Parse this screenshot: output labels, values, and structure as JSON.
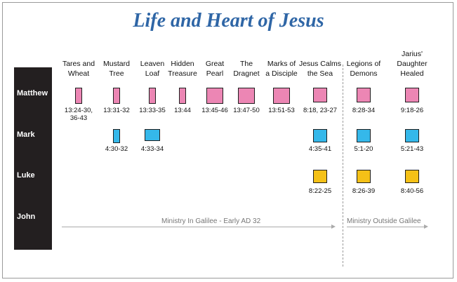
{
  "title": "Life and Heart of Jesus",
  "gospels": [
    "Matthew",
    "Mark",
    "Luke",
    "John"
  ],
  "colors": {
    "matthew": "#ec86b4",
    "mark": "#35b8ea",
    "luke": "#f5c117",
    "title": "#2f66a6"
  },
  "events": [
    {
      "label1": "Tares and",
      "label2": "Wheat",
      "matthew": "13:24-30,\n36-43"
    },
    {
      "label1": "Mustard",
      "label2": "Tree",
      "matthew": "13:31-32",
      "mark": "4:30-32"
    },
    {
      "label1": "Leaven",
      "label2": "Loaf",
      "matthew": "13:33-35",
      "mark": "4:33-34"
    },
    {
      "label1": "Hidden",
      "label2": "Treasure",
      "matthew": "13:44"
    },
    {
      "label1": "Great",
      "label2": "Pearl",
      "matthew": "13:45-46"
    },
    {
      "label1": "The",
      "label2": "Dragnet",
      "matthew": "13:47-50"
    },
    {
      "label1": "Marks of",
      "label2": "a Disciple",
      "matthew": "13:51-53"
    },
    {
      "label1": "Jesus Calms",
      "label2": "the Sea",
      "matthew": "8:18, 23-27",
      "mark": "4:35-41",
      "luke": "8:22-25"
    },
    {
      "label1": "Legions of",
      "label2": "Demons",
      "matthew": "8:28-34",
      "mark": "5:1-20",
      "luke": "8:26-39"
    },
    {
      "label0": "Jarius'",
      "label1": "Daughter",
      "label2": "Healed",
      "matthew": "9:18-26",
      "mark": "5:21-43",
      "luke": "8:40-56"
    }
  ],
  "periods": {
    "galilee": "Ministry In Galilee - Early AD 32",
    "outside": "Ministry Outside Galilee"
  }
}
